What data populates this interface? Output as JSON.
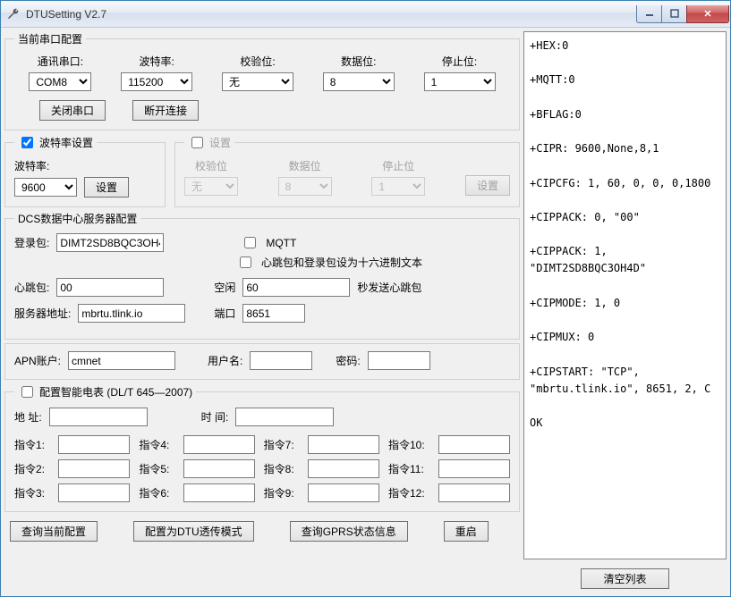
{
  "window": {
    "title": "DTUSetting V2.7"
  },
  "serial": {
    "legend": "当前串口配置",
    "port_label": "通讯串口:",
    "port": "COM8",
    "baud_label": "波特率:",
    "baud": "115200",
    "parity_label": "校验位:",
    "parity": "无",
    "databits_label": "数据位:",
    "databits": "8",
    "stopbits_label": "停止位:",
    "stopbits": "1",
    "close_btn": "关闭串口",
    "disconnect_btn": "断开连接"
  },
  "baud_setting": {
    "legend": "波特率设置",
    "baud_label": "波特率:",
    "baud": "9600",
    "set_btn": "设置"
  },
  "settings": {
    "legend": "设置",
    "parity_label": "校验位",
    "parity": "无",
    "databits_label": "数据位",
    "databits": "8",
    "stopbits_label": "停止位",
    "stopbits": "1",
    "set_btn": "设置"
  },
  "dcs": {
    "legend": "DCS数据中心服务器配置",
    "login_label": "登录包:",
    "login": "DIMT2SD8BQC3OH4D",
    "mqtt_label": "MQTT",
    "hex_label": "心跳包和登录包设为十六进制文本",
    "heartbeat_label": "心跳包:",
    "heartbeat": "00",
    "idle_label": "空闲",
    "idle": "60",
    "idle_suffix": "秒发送心跳包",
    "server_label": "服务器地址:",
    "server": "mbrtu.tlink.io",
    "port_label": "端口",
    "port": "8651"
  },
  "apn": {
    "account_label": "APN账户:",
    "account": "cmnet",
    "user_label": "用户名:",
    "user": "",
    "pwd_label": "密码:",
    "pwd": ""
  },
  "meter": {
    "legend": "配置智能电表 (DL/T 645—2007)",
    "addr_label": "地 址:",
    "addr": "",
    "time_label": "时 间:",
    "time": "",
    "cmd_labels": [
      "指令1:",
      "指令2:",
      "指令3:",
      "指令4:",
      "指令5:",
      "指令6:",
      "指令7:",
      "指令8:",
      "指令9:",
      "指令10:",
      "指令11:",
      "指令12:"
    ]
  },
  "bottom": {
    "query_btn": "查询当前配置",
    "dtu_mode_btn": "配置为DTU透传模式",
    "gprs_btn": "查询GPRS状态信息",
    "restart_btn": "重启"
  },
  "console": "+HEX:0\n\n+MQTT:0\n\n+BFLAG:0\n\n+CIPR: 9600,None,8,1\n\n+CIPCFG: 1, 60, 0, 0, 0,1800\n\n+CIPPACK: 0, \"00\"\n\n+CIPPACK: 1, \"DIMT2SD8BQC3OH4D\"\n\n+CIPMODE: 1, 0\n\n+CIPMUX: 0\n\n+CIPSTART: \"TCP\", \"mbrtu.tlink.io\", 8651, 2, C\n\nOK",
  "clear_btn": "清空列表"
}
